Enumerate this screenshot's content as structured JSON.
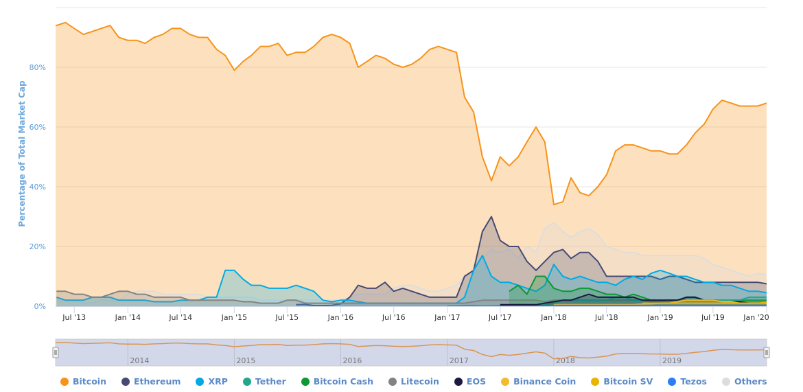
{
  "chart_data": {
    "type": "area",
    "title": "",
    "ylabel": "Percentage of Total Market Cap",
    "xlabel": "",
    "ylim": [
      0,
      100
    ],
    "yticks": [
      "0%",
      "20%",
      "40%",
      "60%",
      "80%"
    ],
    "xticks": [
      "Jul '13",
      "Jan '14",
      "Jul '14",
      "Jan '15",
      "Jul '15",
      "Jan '16",
      "Jul '16",
      "Jan '17",
      "Jul '17",
      "Jan '18",
      "Jul '18",
      "Jan '19",
      "Jul '19",
      "Jan '20"
    ],
    "navigator_ticks": [
      "2014",
      "2015",
      "2016",
      "2017",
      "2018",
      "2019"
    ],
    "xrange": [
      "2013-04-28",
      "2020-01-01"
    ],
    "grid": true,
    "legend_position": "bottom",
    "series": [
      {
        "name": "Bitcoin",
        "color": "#f7931a",
        "start": "2013-05",
        "values": [
          94,
          95,
          93,
          91,
          92,
          93,
          94,
          90,
          89,
          89,
          88,
          90,
          91,
          93,
          93,
          91,
          90,
          90,
          86,
          84,
          79,
          82,
          84,
          87,
          87,
          88,
          84,
          85,
          85,
          87,
          90,
          91,
          90,
          88,
          80,
          82,
          84,
          83,
          81,
          80,
          81,
          83,
          86,
          87,
          86,
          85,
          70,
          65,
          50,
          42,
          50,
          47,
          50,
          55,
          60,
          55,
          34,
          35,
          43,
          38,
          37,
          40,
          44,
          52,
          54,
          54,
          53,
          52,
          52,
          51,
          51,
          54,
          58,
          61,
          66,
          69,
          68,
          67,
          67,
          67,
          68
        ]
      },
      {
        "name": "Others",
        "color": "#dddddd",
        "start": "2013-05",
        "values": [
          2,
          2,
          2,
          1,
          1,
          2,
          2,
          2,
          4,
          5,
          5,
          5,
          4,
          4,
          4,
          4,
          4,
          3,
          3,
          3,
          3,
          3,
          3,
          2,
          2,
          2,
          2,
          2,
          2,
          2,
          2,
          2,
          2,
          3,
          4,
          4,
          4,
          4,
          6,
          7,
          7,
          6,
          5,
          5,
          6,
          7,
          10,
          12,
          16,
          19,
          18,
          19,
          16,
          20,
          18,
          26,
          28,
          25,
          23,
          25,
          26,
          24,
          20,
          19,
          18,
          18,
          17,
          17,
          17,
          17,
          17,
          17,
          17,
          16,
          14,
          13,
          12,
          11,
          10,
          11,
          10.5
        ]
      },
      {
        "name": "Ethereum",
        "color": "#454a75",
        "start": "2015-08",
        "values": [
          0.5,
          0.6,
          0.2,
          0.2,
          0.3,
          0.8,
          3,
          7,
          6,
          6,
          8,
          5,
          6,
          5,
          4,
          3,
          3,
          3,
          3,
          10,
          12,
          25,
          30,
          22,
          20,
          20,
          15,
          12,
          15,
          18,
          19,
          16,
          18,
          18,
          15,
          10,
          10,
          10,
          10,
          10,
          10,
          9,
          10,
          10,
          9,
          8,
          8,
          8,
          8,
          8,
          8,
          8,
          8,
          7.5
        ]
      },
      {
        "name": "XRP",
        "color": "#00aae4",
        "start": "2013-05",
        "values": [
          3,
          2,
          2,
          2,
          3,
          3,
          3,
          2,
          2,
          2,
          2,
          1.5,
          1.5,
          1.5,
          2,
          2,
          2,
          3,
          3,
          12,
          12,
          9,
          7,
          7,
          6,
          6,
          6,
          7,
          6,
          5,
          2,
          1.5,
          2,
          2,
          1.5,
          1,
          1,
          1,
          1,
          1,
          1,
          1,
          1,
          1,
          1,
          1,
          3,
          12,
          17,
          10,
          8,
          8,
          7,
          6,
          5,
          7,
          14,
          10,
          9,
          10,
          9,
          8,
          8,
          7,
          9,
          10,
          9,
          11,
          12,
          11,
          10,
          10,
          9,
          8,
          8,
          7,
          7,
          6,
          5,
          5,
          4.5
        ]
      },
      {
        "name": "Litecoin",
        "color": "#838383",
        "start": "2013-05",
        "values": [
          5,
          5,
          4,
          4,
          3,
          3,
          4,
          5,
          5,
          4,
          4,
          3,
          3,
          3,
          3,
          2,
          2,
          2,
          2,
          2,
          2,
          1.5,
          1.5,
          1,
          1,
          1,
          2,
          2,
          1,
          1,
          1,
          1,
          1,
          1,
          1,
          1,
          1,
          1,
          1,
          1,
          1,
          1,
          1,
          1,
          1,
          1,
          1,
          1.5,
          2,
          2,
          2,
          2,
          2,
          2,
          2,
          1.5,
          2,
          2,
          2,
          2,
          2,
          2,
          2,
          2,
          2,
          2,
          2,
          1.5,
          1.5,
          2,
          2,
          2,
          2,
          2,
          2,
          1.5,
          1.5,
          1.5,
          1.5,
          1.5,
          1.5
        ]
      },
      {
        "name": "Bitcoin Cash",
        "color": "#0a9932",
        "start": "2017-08",
        "values": [
          5,
          7,
          4,
          10,
          10,
          6,
          5,
          5,
          6,
          6,
          5,
          4,
          4,
          3,
          4,
          3,
          2,
          2,
          2,
          2,
          3,
          3,
          2,
          2,
          2,
          2,
          2,
          2,
          2,
          2
        ]
      },
      {
        "name": "Tether",
        "color": "#1fa88b",
        "start": "2017-01",
        "values": [
          0.1,
          0.1,
          0.2,
          0.2,
          0.1,
          0.1,
          0.2,
          0.4,
          0.6,
          0.5,
          0.4,
          0.4,
          1,
          2,
          2,
          2,
          2,
          2,
          2,
          3,
          3,
          2,
          2,
          2,
          2,
          2,
          2,
          3,
          3,
          2,
          2,
          2,
          2,
          2,
          3,
          3,
          3
        ]
      },
      {
        "name": "EOS",
        "color": "#1a1a40",
        "start": "2017-07",
        "values": [
          0.5,
          0.5,
          0.5,
          0.5,
          0.5,
          1,
          1.5,
          2,
          2,
          3,
          4,
          3,
          3,
          3,
          3,
          3,
          2,
          2,
          2,
          2,
          2,
          3,
          3,
          2,
          2,
          1.5,
          1.5,
          1.5,
          1,
          1,
          1
        ]
      },
      {
        "name": "Binance Coin",
        "color": "#f3ba2f",
        "start": "2018-01",
        "values": [
          0.5,
          0.5,
          0.5,
          0.5,
          0.5,
          0.5,
          0.5,
          0.5,
          0.5,
          0.5,
          0.7,
          0.8,
          1,
          1,
          1.5,
          2,
          2,
          2,
          2,
          1.5,
          1.5,
          1,
          1,
          1,
          1
        ]
      },
      {
        "name": "Bitcoin SV",
        "color": "#eab300",
        "start": "2018-11",
        "values": [
          1,
          1,
          1,
          1,
          1,
          1,
          1,
          1,
          1,
          1,
          1,
          1,
          1,
          1,
          1.3
        ]
      },
      {
        "name": "Tezos",
        "color": "#2c7df7",
        "start": "2018-01",
        "values": [
          0.3,
          0.3,
          0.3,
          0.3,
          0.3,
          0.3,
          0.3,
          0.3,
          0.3,
          0.3,
          0.3,
          0.3,
          0.3,
          0.3,
          0.3,
          0.3,
          0.3,
          0.3,
          0.3,
          0.3,
          0.3,
          0.3,
          0.3,
          0.3,
          0.3
        ]
      }
    ]
  },
  "legend": [
    {
      "name": "Bitcoin",
      "color": "#f7931a"
    },
    {
      "name": "Ethereum",
      "color": "#454a75"
    },
    {
      "name": "XRP",
      "color": "#00aae4"
    },
    {
      "name": "Tether",
      "color": "#1fa88b"
    },
    {
      "name": "Bitcoin Cash",
      "color": "#0a9932"
    },
    {
      "name": "Litecoin",
      "color": "#838383"
    },
    {
      "name": "EOS",
      "color": "#1a1a40"
    },
    {
      "name": "Binance Coin",
      "color": "#f3ba2f"
    },
    {
      "name": "Bitcoin SV",
      "color": "#eab300"
    },
    {
      "name": "Tezos",
      "color": "#2c7df7"
    },
    {
      "name": "Others",
      "color": "#dddddd"
    }
  ]
}
